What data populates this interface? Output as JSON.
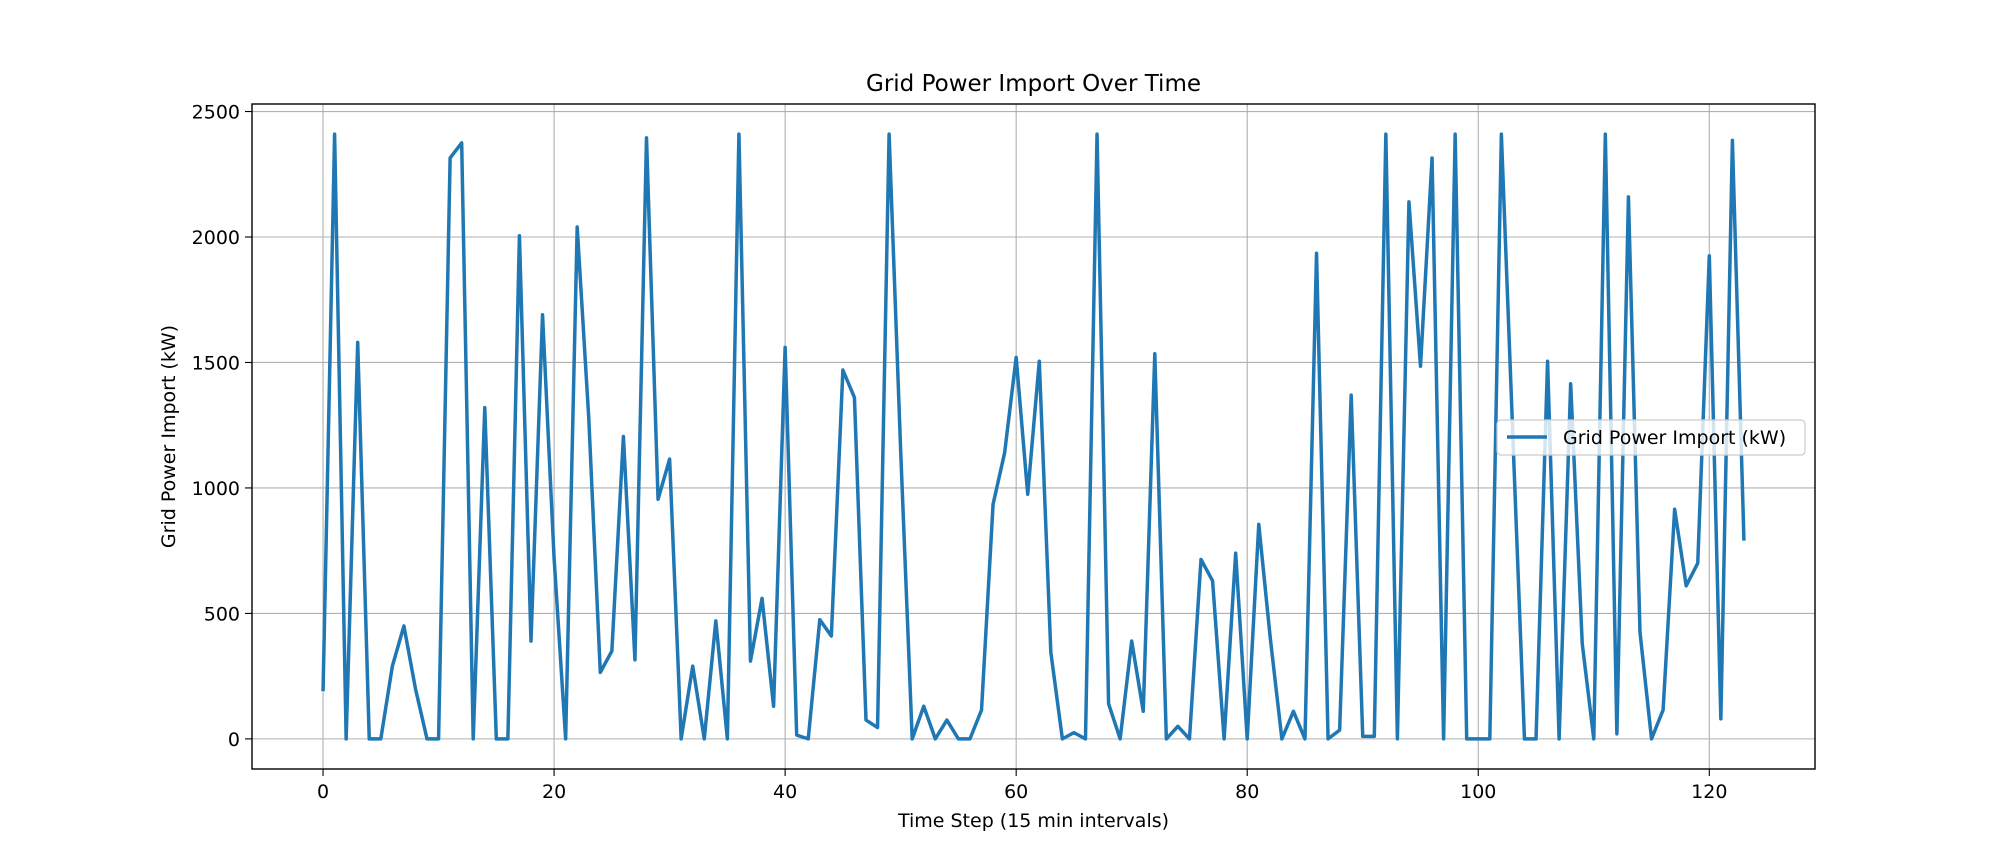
{
  "chart_data": {
    "type": "line",
    "title": "Grid Power Import Over Time",
    "xlabel": "Time Step (15 min intervals)",
    "ylabel": "Grid Power Import (kW)",
    "xlim": [
      -6.15,
      129.15
    ],
    "ylim": [
      -120,
      2530
    ],
    "xticks": [
      0,
      20,
      40,
      60,
      80,
      100,
      120
    ],
    "yticks": [
      0,
      500,
      1000,
      1500,
      2000,
      2500
    ],
    "grid": true,
    "legend": {
      "placement": "center-right"
    },
    "color": "#1f77b4",
    "series": [
      {
        "name": "Grid Power Import (kW)",
        "x": [
          0,
          1,
          2,
          3,
          4,
          5,
          6,
          7,
          8,
          9,
          10,
          11,
          12,
          13,
          14,
          15,
          16,
          17,
          18,
          19,
          20,
          21,
          22,
          23,
          24,
          25,
          26,
          27,
          28,
          29,
          30,
          31,
          32,
          33,
          34,
          35,
          36,
          37,
          38,
          39,
          40,
          41,
          42,
          43,
          44,
          45,
          46,
          47,
          48,
          49,
          50,
          51,
          52,
          53,
          54,
          55,
          56,
          57,
          58,
          59,
          60,
          61,
          62,
          63,
          64,
          65,
          66,
          67,
          68,
          69,
          70,
          71,
          72,
          73,
          74,
          75,
          76,
          77,
          78,
          79,
          80,
          81,
          82,
          83,
          84,
          85,
          86,
          87,
          88,
          89,
          90,
          91,
          92,
          93,
          94,
          95,
          96,
          97,
          98,
          99,
          100,
          101,
          102,
          103,
          104,
          105,
          106,
          107,
          108,
          109,
          110,
          111,
          112,
          113,
          114,
          115,
          116,
          117,
          118,
          119,
          120,
          121,
          122,
          123
        ],
        "values": [
          190,
          2410,
          0,
          1580,
          0,
          0,
          290,
          450,
          200,
          0,
          0,
          2315,
          2375,
          0,
          1320,
          0,
          0,
          2005,
          390,
          1690,
          720,
          0,
          2040,
          1280,
          265,
          350,
          1205,
          315,
          2395,
          955,
          1115,
          0,
          290,
          0,
          470,
          0,
          2410,
          310,
          560,
          130,
          1560,
          15,
          0,
          475,
          410,
          1470,
          1360,
          75,
          45,
          2410,
          1150,
          0,
          130,
          0,
          75,
          0,
          0,
          115,
          935,
          1140,
          1520,
          975,
          1505,
          345,
          0,
          25,
          0,
          2410,
          140,
          0,
          390,
          110,
          1535,
          0,
          50,
          0,
          715,
          630,
          0,
          740,
          0,
          855,
          400,
          0,
          110,
          0,
          1935,
          0,
          35,
          1370,
          10,
          10,
          2410,
          0,
          2140,
          1485,
          2315,
          0,
          2410,
          0,
          0,
          0,
          2410,
          1200,
          0,
          0,
          1505,
          0,
          1415,
          380,
          0,
          2410,
          20,
          2160,
          425,
          0,
          115,
          915,
          610,
          700,
          1925,
          80,
          2385,
          790
        ]
      }
    ]
  }
}
